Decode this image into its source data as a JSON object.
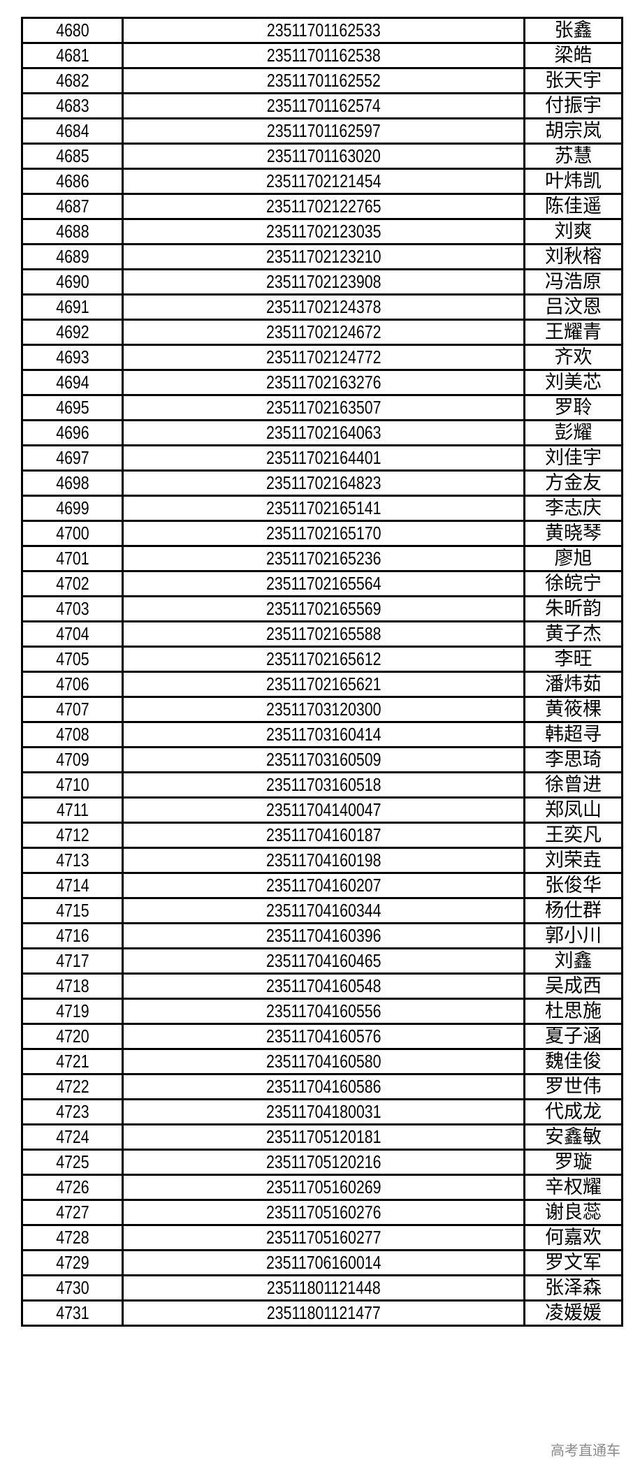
{
  "table": {
    "rows": [
      [
        "4680",
        "23511701162533",
        "张鑫"
      ],
      [
        "4681",
        "23511701162538",
        "梁皓"
      ],
      [
        "4682",
        "23511701162552",
        "张天宇"
      ],
      [
        "4683",
        "23511701162574",
        "付振宇"
      ],
      [
        "4684",
        "23511701162597",
        "胡宗岚"
      ],
      [
        "4685",
        "23511701163020",
        "苏慧"
      ],
      [
        "4686",
        "23511702121454",
        "叶炜凯"
      ],
      [
        "4687",
        "23511702122765",
        "陈佳遥"
      ],
      [
        "4688",
        "23511702123035",
        "刘爽"
      ],
      [
        "4689",
        "23511702123210",
        "刘秋榕"
      ],
      [
        "4690",
        "23511702123908",
        "冯浩原"
      ],
      [
        "4691",
        "23511702124378",
        "吕汶恩"
      ],
      [
        "4692",
        "23511702124672",
        "王耀青"
      ],
      [
        "4693",
        "23511702124772",
        "齐欢"
      ],
      [
        "4694",
        "23511702163276",
        "刘美芯"
      ],
      [
        "4695",
        "23511702163507",
        "罗聆"
      ],
      [
        "4696",
        "23511702164063",
        "彭耀"
      ],
      [
        "4697",
        "23511702164401",
        "刘佳宇"
      ],
      [
        "4698",
        "23511702164823",
        "方金友"
      ],
      [
        "4699",
        "23511702165141",
        "李志庆"
      ],
      [
        "4700",
        "23511702165170",
        "黄晓琴"
      ],
      [
        "4701",
        "23511702165236",
        "廖旭"
      ],
      [
        "4702",
        "23511702165564",
        "徐皖宁"
      ],
      [
        "4703",
        "23511702165569",
        "朱昕韵"
      ],
      [
        "4704",
        "23511702165588",
        "黄子杰"
      ],
      [
        "4705",
        "23511702165612",
        "李旺"
      ],
      [
        "4706",
        "23511702165621",
        "潘炜茹"
      ],
      [
        "4707",
        "23511703120300",
        "黄筱棵"
      ],
      [
        "4708",
        "23511703160414",
        "韩超寻"
      ],
      [
        "4709",
        "23511703160509",
        "李思琦"
      ],
      [
        "4710",
        "23511703160518",
        "徐曾进"
      ],
      [
        "4711",
        "23511704140047",
        "郑凤山"
      ],
      [
        "4712",
        "23511704160187",
        "王奕凡"
      ],
      [
        "4713",
        "23511704160198",
        "刘荣垚"
      ],
      [
        "4714",
        "23511704160207",
        "张俊华"
      ],
      [
        "4715",
        "23511704160344",
        "杨仕群"
      ],
      [
        "4716",
        "23511704160396",
        "郭小川"
      ],
      [
        "4717",
        "23511704160465",
        "刘鑫"
      ],
      [
        "4718",
        "23511704160548",
        "吴成西"
      ],
      [
        "4719",
        "23511704160556",
        "杜思施"
      ],
      [
        "4720",
        "23511704160576",
        "夏子涵"
      ],
      [
        "4721",
        "23511704160580",
        "魏佳俊"
      ],
      [
        "4722",
        "23511704160586",
        "罗世伟"
      ],
      [
        "4723",
        "23511704180031",
        "代成龙"
      ],
      [
        "4724",
        "23511705120181",
        "安鑫敏"
      ],
      [
        "4725",
        "23511705120216",
        "罗璇"
      ],
      [
        "4726",
        "23511705160269",
        "辛权耀"
      ],
      [
        "4727",
        "23511705160276",
        "谢良蕊"
      ],
      [
        "4728",
        "23511705160277",
        "何嘉欢"
      ],
      [
        "4729",
        "23511706160014",
        "罗文军"
      ],
      [
        "4730",
        "23511801121448",
        "张泽森"
      ],
      [
        "4731",
        "23511801121477",
        "凌媛媛"
      ]
    ]
  },
  "watermark": "高考直通车"
}
